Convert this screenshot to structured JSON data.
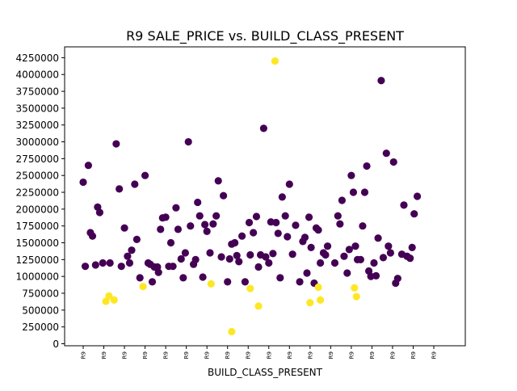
{
  "chart_data": {
    "type": "scatter",
    "title": "R9 SALE_PRICE vs. BUILD_CLASS_PRESENT",
    "xlabel": "BUILD_CLASS_PRESENT",
    "ylabel": "",
    "xlim": [
      0,
      20
    ],
    "ylim": [
      0,
      4400000
    ],
    "y_ticks": [
      0,
      250000,
      500000,
      750000,
      1000000,
      1250000,
      1500000,
      1750000,
      2000000,
      2250000,
      2500000,
      2750000,
      3000000,
      3250000,
      3500000,
      3750000,
      4000000,
      4250000
    ],
    "x_ticks": [
      0,
      1,
      2,
      3,
      4,
      5,
      6,
      7,
      8,
      9,
      10,
      11,
      12,
      13,
      14,
      15,
      16,
      17
    ],
    "x_tick_labels": [
      "R9",
      "R9",
      "R9",
      "R9",
      "R9",
      "R9",
      "R9",
      "R9",
      "R9",
      "R9",
      "R9",
      "R9",
      "R9",
      "R9",
      "R9",
      "R9",
      "R9",
      "R9"
    ],
    "grid": false,
    "legend": "none",
    "colors": {
      "group_a": "#440154",
      "group_b": "#fde725"
    },
    "series": [
      {
        "values": [
          [
            0.0,
            2400000
          ],
          [
            0.1,
            1150000
          ],
          [
            0.25,
            2650000
          ],
          [
            0.35,
            1650000
          ],
          [
            0.45,
            1600000
          ],
          [
            0.6,
            1170000
          ],
          [
            0.7,
            2030000
          ],
          [
            0.8,
            1950000
          ],
          [
            0.95,
            1200000
          ],
          [
            1.3,
            1200000
          ],
          [
            1.6,
            2970000
          ],
          [
            1.75,
            2300000
          ],
          [
            1.85,
            1150000
          ],
          [
            2.0,
            1720000
          ],
          [
            2.15,
            1300000
          ],
          [
            2.25,
            1200000
          ],
          [
            2.35,
            1390000
          ],
          [
            2.5,
            2370000
          ],
          [
            2.6,
            1550000
          ],
          [
            2.75,
            980000
          ],
          [
            3.0,
            2500000
          ],
          [
            3.15,
            1200000
          ],
          [
            3.25,
            1180000
          ],
          [
            3.35,
            920000
          ],
          [
            3.45,
            1140000
          ],
          [
            3.6,
            1140000
          ],
          [
            3.65,
            1060000
          ],
          [
            3.75,
            1700000
          ],
          [
            3.85,
            1870000
          ],
          [
            4.0,
            1880000
          ],
          [
            4.15,
            1150000
          ],
          [
            4.25,
            1500000
          ],
          [
            4.35,
            1150000
          ],
          [
            4.5,
            2020000
          ],
          [
            4.6,
            1700000
          ],
          [
            4.75,
            1260000
          ],
          [
            4.85,
            980000
          ],
          [
            4.95,
            1350000
          ],
          [
            5.1,
            3000000
          ],
          [
            5.2,
            1750000
          ],
          [
            5.35,
            1180000
          ],
          [
            5.45,
            1250000
          ],
          [
            5.55,
            2100000
          ],
          [
            5.65,
            1900000
          ],
          [
            5.8,
            990000
          ],
          [
            5.9,
            1770000
          ],
          [
            6.0,
            1670000
          ],
          [
            6.15,
            1350000
          ],
          [
            6.3,
            1780000
          ],
          [
            6.45,
            1900000
          ],
          [
            6.55,
            2420000
          ],
          [
            6.7,
            1290000
          ],
          [
            6.8,
            2200000
          ],
          [
            7.0,
            920000
          ],
          [
            7.1,
            1260000
          ],
          [
            7.2,
            1480000
          ],
          [
            7.35,
            1500000
          ],
          [
            7.45,
            1310000
          ],
          [
            7.55,
            1220000
          ],
          [
            7.7,
            1600000
          ],
          [
            7.85,
            920000
          ],
          [
            8.05,
            1800000
          ],
          [
            8.1,
            1320000
          ],
          [
            8.25,
            1650000
          ],
          [
            8.4,
            1890000
          ],
          [
            8.5,
            1140000
          ],
          [
            8.6,
            1320000
          ],
          [
            8.75,
            3200000
          ],
          [
            8.85,
            1290000
          ],
          [
            9.0,
            1200000
          ],
          [
            9.1,
            1810000
          ],
          [
            9.2,
            1340000
          ],
          [
            9.35,
            1800000
          ],
          [
            9.45,
            1640000
          ],
          [
            9.55,
            980000
          ],
          [
            9.65,
            2180000
          ],
          [
            9.8,
            1900000
          ],
          [
            9.9,
            1590000
          ],
          [
            10.0,
            2370000
          ],
          [
            10.15,
            1330000
          ],
          [
            10.3,
            1760000
          ],
          [
            10.5,
            920000
          ],
          [
            10.65,
            1520000
          ],
          [
            10.75,
            1580000
          ],
          [
            10.85,
            1050000
          ],
          [
            10.95,
            1880000
          ],
          [
            11.05,
            1430000
          ],
          [
            11.2,
            900000
          ],
          [
            11.3,
            1720000
          ],
          [
            11.4,
            1690000
          ],
          [
            11.5,
            1200000
          ],
          [
            11.65,
            1350000
          ],
          [
            11.75,
            1320000
          ],
          [
            11.85,
            1450000
          ],
          [
            12.2,
            1200000
          ],
          [
            12.35,
            1900000
          ],
          [
            12.45,
            1780000
          ],
          [
            12.55,
            2130000
          ],
          [
            12.65,
            1300000
          ],
          [
            12.8,
            1050000
          ],
          [
            12.9,
            1400000
          ],
          [
            13.0,
            2500000
          ],
          [
            13.1,
            2250000
          ],
          [
            13.2,
            1450000
          ],
          [
            13.3,
            1250000
          ],
          [
            13.45,
            1250000
          ],
          [
            13.55,
            1750000
          ],
          [
            13.65,
            2250000
          ],
          [
            13.75,
            2640000
          ],
          [
            13.85,
            1080000
          ],
          [
            13.95,
            1000000
          ],
          [
            14.1,
            1200000
          ],
          [
            14.2,
            1010000
          ],
          [
            14.3,
            1570000
          ],
          [
            14.45,
            3910000
          ],
          [
            14.55,
            1280000
          ],
          [
            14.7,
            2830000
          ],
          [
            14.8,
            1450000
          ],
          [
            14.9,
            1350000
          ],
          [
            15.05,
            2700000
          ],
          [
            15.15,
            900000
          ],
          [
            15.25,
            970000
          ],
          [
            15.45,
            1330000
          ],
          [
            15.55,
            2060000
          ],
          [
            15.7,
            1300000
          ],
          [
            15.85,
            1270000
          ],
          [
            15.95,
            1430000
          ],
          [
            16.05,
            1930000
          ],
          [
            16.2,
            2190000
          ]
        ]
      },
      {
        "values": [
          [
            1.1,
            630000
          ],
          [
            1.25,
            710000
          ],
          [
            1.5,
            650000
          ],
          [
            2.9,
            850000
          ],
          [
            6.2,
            890000
          ],
          [
            7.2,
            180000
          ],
          [
            8.1,
            820000
          ],
          [
            8.5,
            560000
          ],
          [
            9.3,
            4200000
          ],
          [
            11.0,
            610000
          ],
          [
            11.4,
            840000
          ],
          [
            11.5,
            650000
          ],
          [
            13.15,
            830000
          ],
          [
            13.25,
            700000
          ]
        ]
      }
    ]
  }
}
